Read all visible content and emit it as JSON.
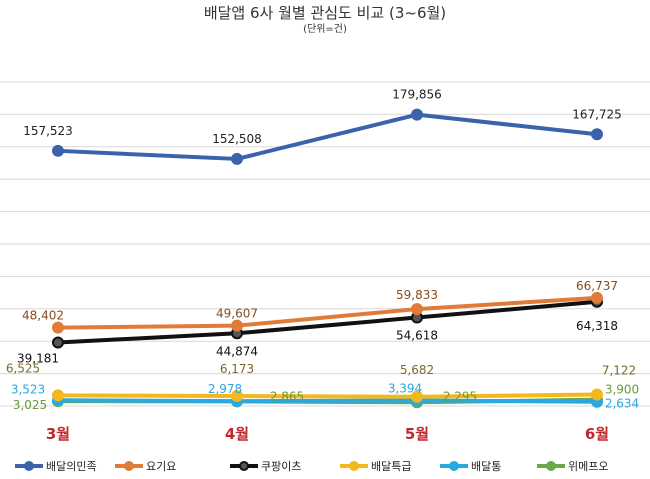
{
  "chart_data": {
    "type": "line",
    "title": "배달앱 6사 월별 관심도 비교 (3~6월)",
    "subtitle": "(단위=건)",
    "categories": [
      "3월",
      "4월",
      "5월",
      "6월"
    ],
    "ylim": [
      0,
      200000
    ],
    "grid": true,
    "legend_placement": "bottom",
    "series": [
      {
        "name": "배달의민족",
        "values": [
          157523,
          152508,
          179856,
          167725
        ],
        "labels": [
          "157,523",
          "152,508",
          "179,856",
          "167,725"
        ],
        "color": "#3a62ad",
        "label_color": "#222222"
      },
      {
        "name": "요기요",
        "values": [
          48402,
          49607,
          59833,
          66737
        ],
        "labels": [
          "48,402",
          "49,607",
          "59,833",
          "66,737"
        ],
        "color": "#e07b39",
        "label_color": "#8a4a1e"
      },
      {
        "name": "쿠팡이츠",
        "values": [
          39181,
          44874,
          54618,
          64318
        ],
        "labels": [
          "39,181",
          "44,874",
          "54,618",
          "64,318"
        ],
        "color": "#111111",
        "label_color": "#111111"
      },
      {
        "name": "배달특급",
        "values": [
          6525,
          6173,
          5682,
          7122
        ],
        "labels": [
          "6,525",
          "6,173",
          "5,682",
          "7,122"
        ],
        "color": "#f2b81c",
        "label_color": "#7a6a2a"
      },
      {
        "name": "배달통",
        "values": [
          3523,
          2978,
          3394,
          2634
        ],
        "labels": [
          "3,523",
          "2,978",
          "3,394",
          "2,634"
        ],
        "color": "#2aa8e0",
        "label_color": "#2aa8e0"
      },
      {
        "name": "위메프오",
        "values": [
          3025,
          2865,
          2295,
          3900
        ],
        "labels": [
          "3,025",
          "2,865",
          "2,295",
          "3,900"
        ],
        "color": "#6aa84f",
        "label_color": "#6a9a3a"
      }
    ],
    "month_label_color": "#c0282d"
  }
}
